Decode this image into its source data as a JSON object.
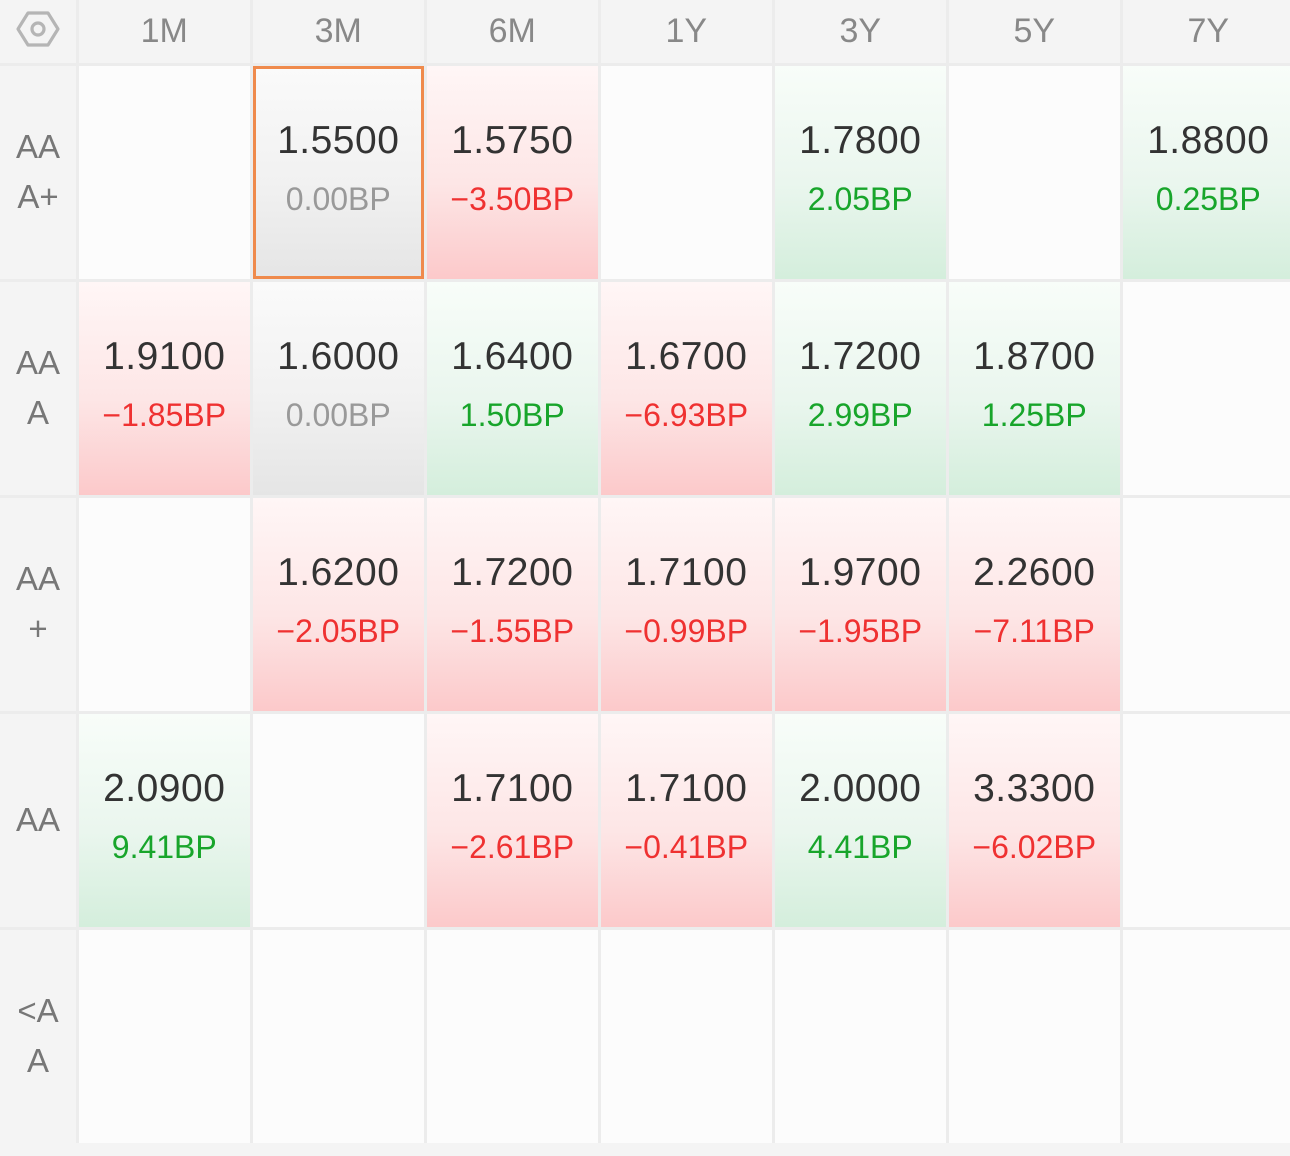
{
  "columns": [
    "1M",
    "3M",
    "6M",
    "1Y",
    "3Y",
    "5Y",
    "7Y"
  ],
  "rows": [
    {
      "label_lines": [
        "AA",
        "A+"
      ],
      "cells": [
        null,
        {
          "value": "1.5500",
          "change": "0.00BP",
          "direction": "flat",
          "selected": true
        },
        {
          "value": "1.5750",
          "change": "−3.50BP",
          "direction": "down"
        },
        null,
        {
          "value": "1.7800",
          "change": "2.05BP",
          "direction": "up"
        },
        null,
        {
          "value": "1.8800",
          "change": "0.25BP",
          "direction": "up"
        }
      ]
    },
    {
      "label_lines": [
        "AA",
        "A"
      ],
      "cells": [
        {
          "value": "1.9100",
          "change": "−1.85BP",
          "direction": "down"
        },
        {
          "value": "1.6000",
          "change": "0.00BP",
          "direction": "flat"
        },
        {
          "value": "1.6400",
          "change": "1.50BP",
          "direction": "up"
        },
        {
          "value": "1.6700",
          "change": "−6.93BP",
          "direction": "down"
        },
        {
          "value": "1.7200",
          "change": "2.99BP",
          "direction": "up"
        },
        {
          "value": "1.8700",
          "change": "1.25BP",
          "direction": "up"
        },
        null
      ]
    },
    {
      "label_lines": [
        "AA",
        "+"
      ],
      "cells": [
        null,
        {
          "value": "1.6200",
          "change": "−2.05BP",
          "direction": "down"
        },
        {
          "value": "1.7200",
          "change": "−1.55BP",
          "direction": "down"
        },
        {
          "value": "1.7100",
          "change": "−0.99BP",
          "direction": "down"
        },
        {
          "value": "1.9700",
          "change": "−1.95BP",
          "direction": "down"
        },
        {
          "value": "2.2600",
          "change": "−7.11BP",
          "direction": "down"
        },
        null
      ]
    },
    {
      "label_lines": [
        "AA"
      ],
      "cells": [
        {
          "value": "2.0900",
          "change": "9.41BP",
          "direction": "up"
        },
        null,
        {
          "value": "1.7100",
          "change": "−2.61BP",
          "direction": "down"
        },
        {
          "value": "1.7100",
          "change": "−0.41BP",
          "direction": "down"
        },
        {
          "value": "2.0000",
          "change": "4.41BP",
          "direction": "up"
        },
        {
          "value": "3.3300",
          "change": "−6.02BP",
          "direction": "down"
        },
        null
      ]
    },
    {
      "label_lines": [
        "<A",
        "A"
      ],
      "cells": [
        null,
        null,
        null,
        null,
        null,
        null,
        null
      ]
    }
  ],
  "corner_icon": "hexagon-settings-icon",
  "colors": {
    "up_text": "#18a52b",
    "down_text": "#ef3131",
    "flat_text": "#999999",
    "selected_border": "#ef8a4c"
  }
}
